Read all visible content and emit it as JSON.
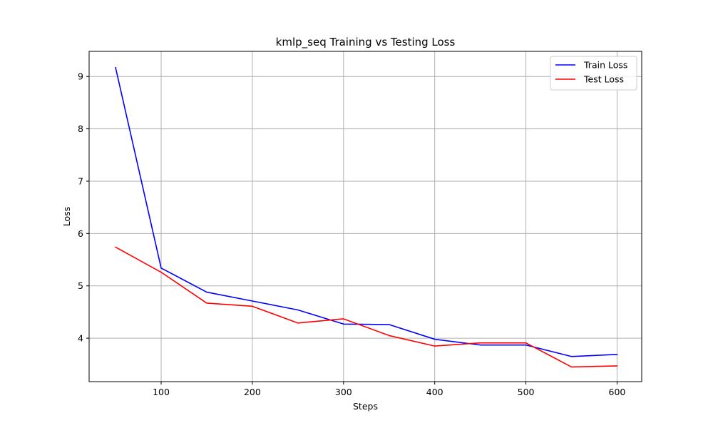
{
  "chart_data": {
    "type": "line",
    "title": "kmlp_seq Training vs Testing Loss",
    "xlabel": "Steps",
    "ylabel": "Loss",
    "xlim": [
      21,
      627
    ],
    "ylim": [
      3.17,
      9.48
    ],
    "xticks": [
      100,
      200,
      300,
      400,
      500,
      600
    ],
    "yticks": [
      4,
      5,
      6,
      7,
      8,
      9
    ],
    "grid": true,
    "legend_position": "top-right",
    "x": [
      50,
      100,
      150,
      200,
      250,
      300,
      350,
      400,
      450,
      500,
      550,
      600
    ],
    "series": [
      {
        "name": "Train Loss",
        "color": "#0000ff",
        "values": [
          9.17,
          5.34,
          4.88,
          4.71,
          4.54,
          4.27,
          4.26,
          3.98,
          3.87,
          3.87,
          3.65,
          3.69
        ]
      },
      {
        "name": "Test Loss",
        "color": "#ff0000",
        "values": [
          5.74,
          5.26,
          4.67,
          4.61,
          4.29,
          4.37,
          4.05,
          3.85,
          3.91,
          3.91,
          3.45,
          3.47
        ]
      }
    ]
  }
}
